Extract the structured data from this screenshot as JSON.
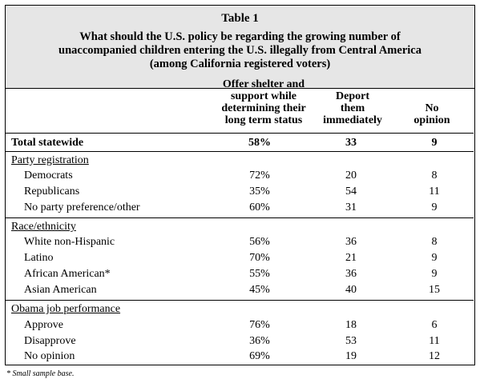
{
  "table": {
    "number": "Table 1",
    "question_lines": [
      "What should the U.S. policy be regarding the growing number of",
      "unaccompanied children entering the U.S. illegally from Central America",
      "(among California registered voters)"
    ],
    "columns": [
      {
        "lines": [
          "Offer shelter and",
          "support while",
          "determining their",
          "long term status"
        ]
      },
      {
        "lines": [
          "Deport",
          "them",
          "immediately"
        ]
      },
      {
        "lines": [
          "No",
          "opinion"
        ]
      }
    ],
    "total": {
      "label": "Total statewide",
      "values": [
        "58%",
        "33",
        "9"
      ]
    },
    "sections": [
      {
        "title": "Party registration",
        "rows": [
          {
            "label": "Democrats",
            "values": [
              "72%",
              "20",
              "8"
            ]
          },
          {
            "label": "Republicans",
            "values": [
              "35%",
              "54",
              "11"
            ]
          },
          {
            "label": "No party preference/other",
            "values": [
              "60%",
              "31",
              "9"
            ]
          }
        ]
      },
      {
        "title": "Race/ethnicity",
        "rows": [
          {
            "label": "White non-Hispanic",
            "values": [
              "56%",
              "36",
              "8"
            ]
          },
          {
            "label": "Latino",
            "values": [
              "70%",
              "21",
              "9"
            ]
          },
          {
            "label": "African American*",
            "values": [
              "55%",
              "36",
              "9"
            ]
          },
          {
            "label": "Asian American",
            "values": [
              "45%",
              "40",
              "15"
            ]
          }
        ]
      },
      {
        "title": "Obama job performance",
        "rows": [
          {
            "label": "Approve",
            "values": [
              "76%",
              "18",
              "6"
            ]
          },
          {
            "label": "Disapprove",
            "values": [
              "36%",
              "53",
              "11"
            ]
          },
          {
            "label": "No opinion",
            "values": [
              "69%",
              "19",
              "12"
            ]
          }
        ]
      }
    ],
    "footnote": "*  Small sample base."
  }
}
